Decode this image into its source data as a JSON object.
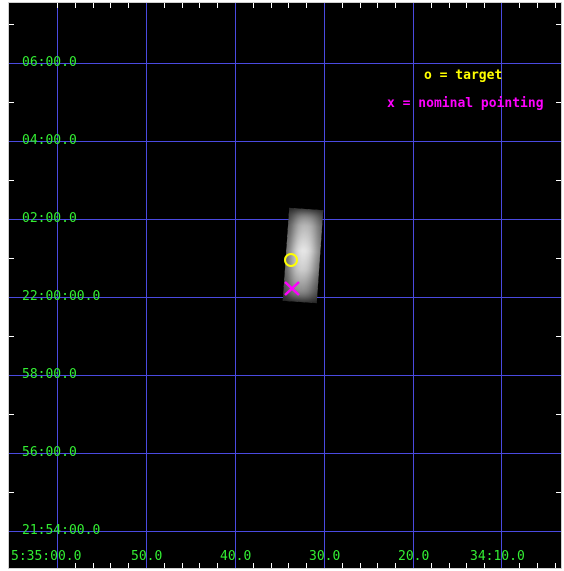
{
  "y_axis": {
    "labels": [
      "06:00.0",
      "04:00.0",
      "02:00.0",
      "22:00:00.0",
      "58:00.0",
      "56:00.0",
      "21:54:00.0"
    ]
  },
  "x_axis": {
    "labels": [
      "5:35:00.0",
      "50.0",
      "40.0",
      "30.0",
      "20.0",
      "34:10.0"
    ]
  },
  "legend": {
    "target_text": "o = target",
    "target_color": "#ffff00",
    "nominal_text": "x = nominal pointing",
    "nominal_color": "#ff00ff"
  },
  "colors": {
    "grid": "#4a4ae0",
    "labels": "#33ee33",
    "background": "#000000"
  }
}
